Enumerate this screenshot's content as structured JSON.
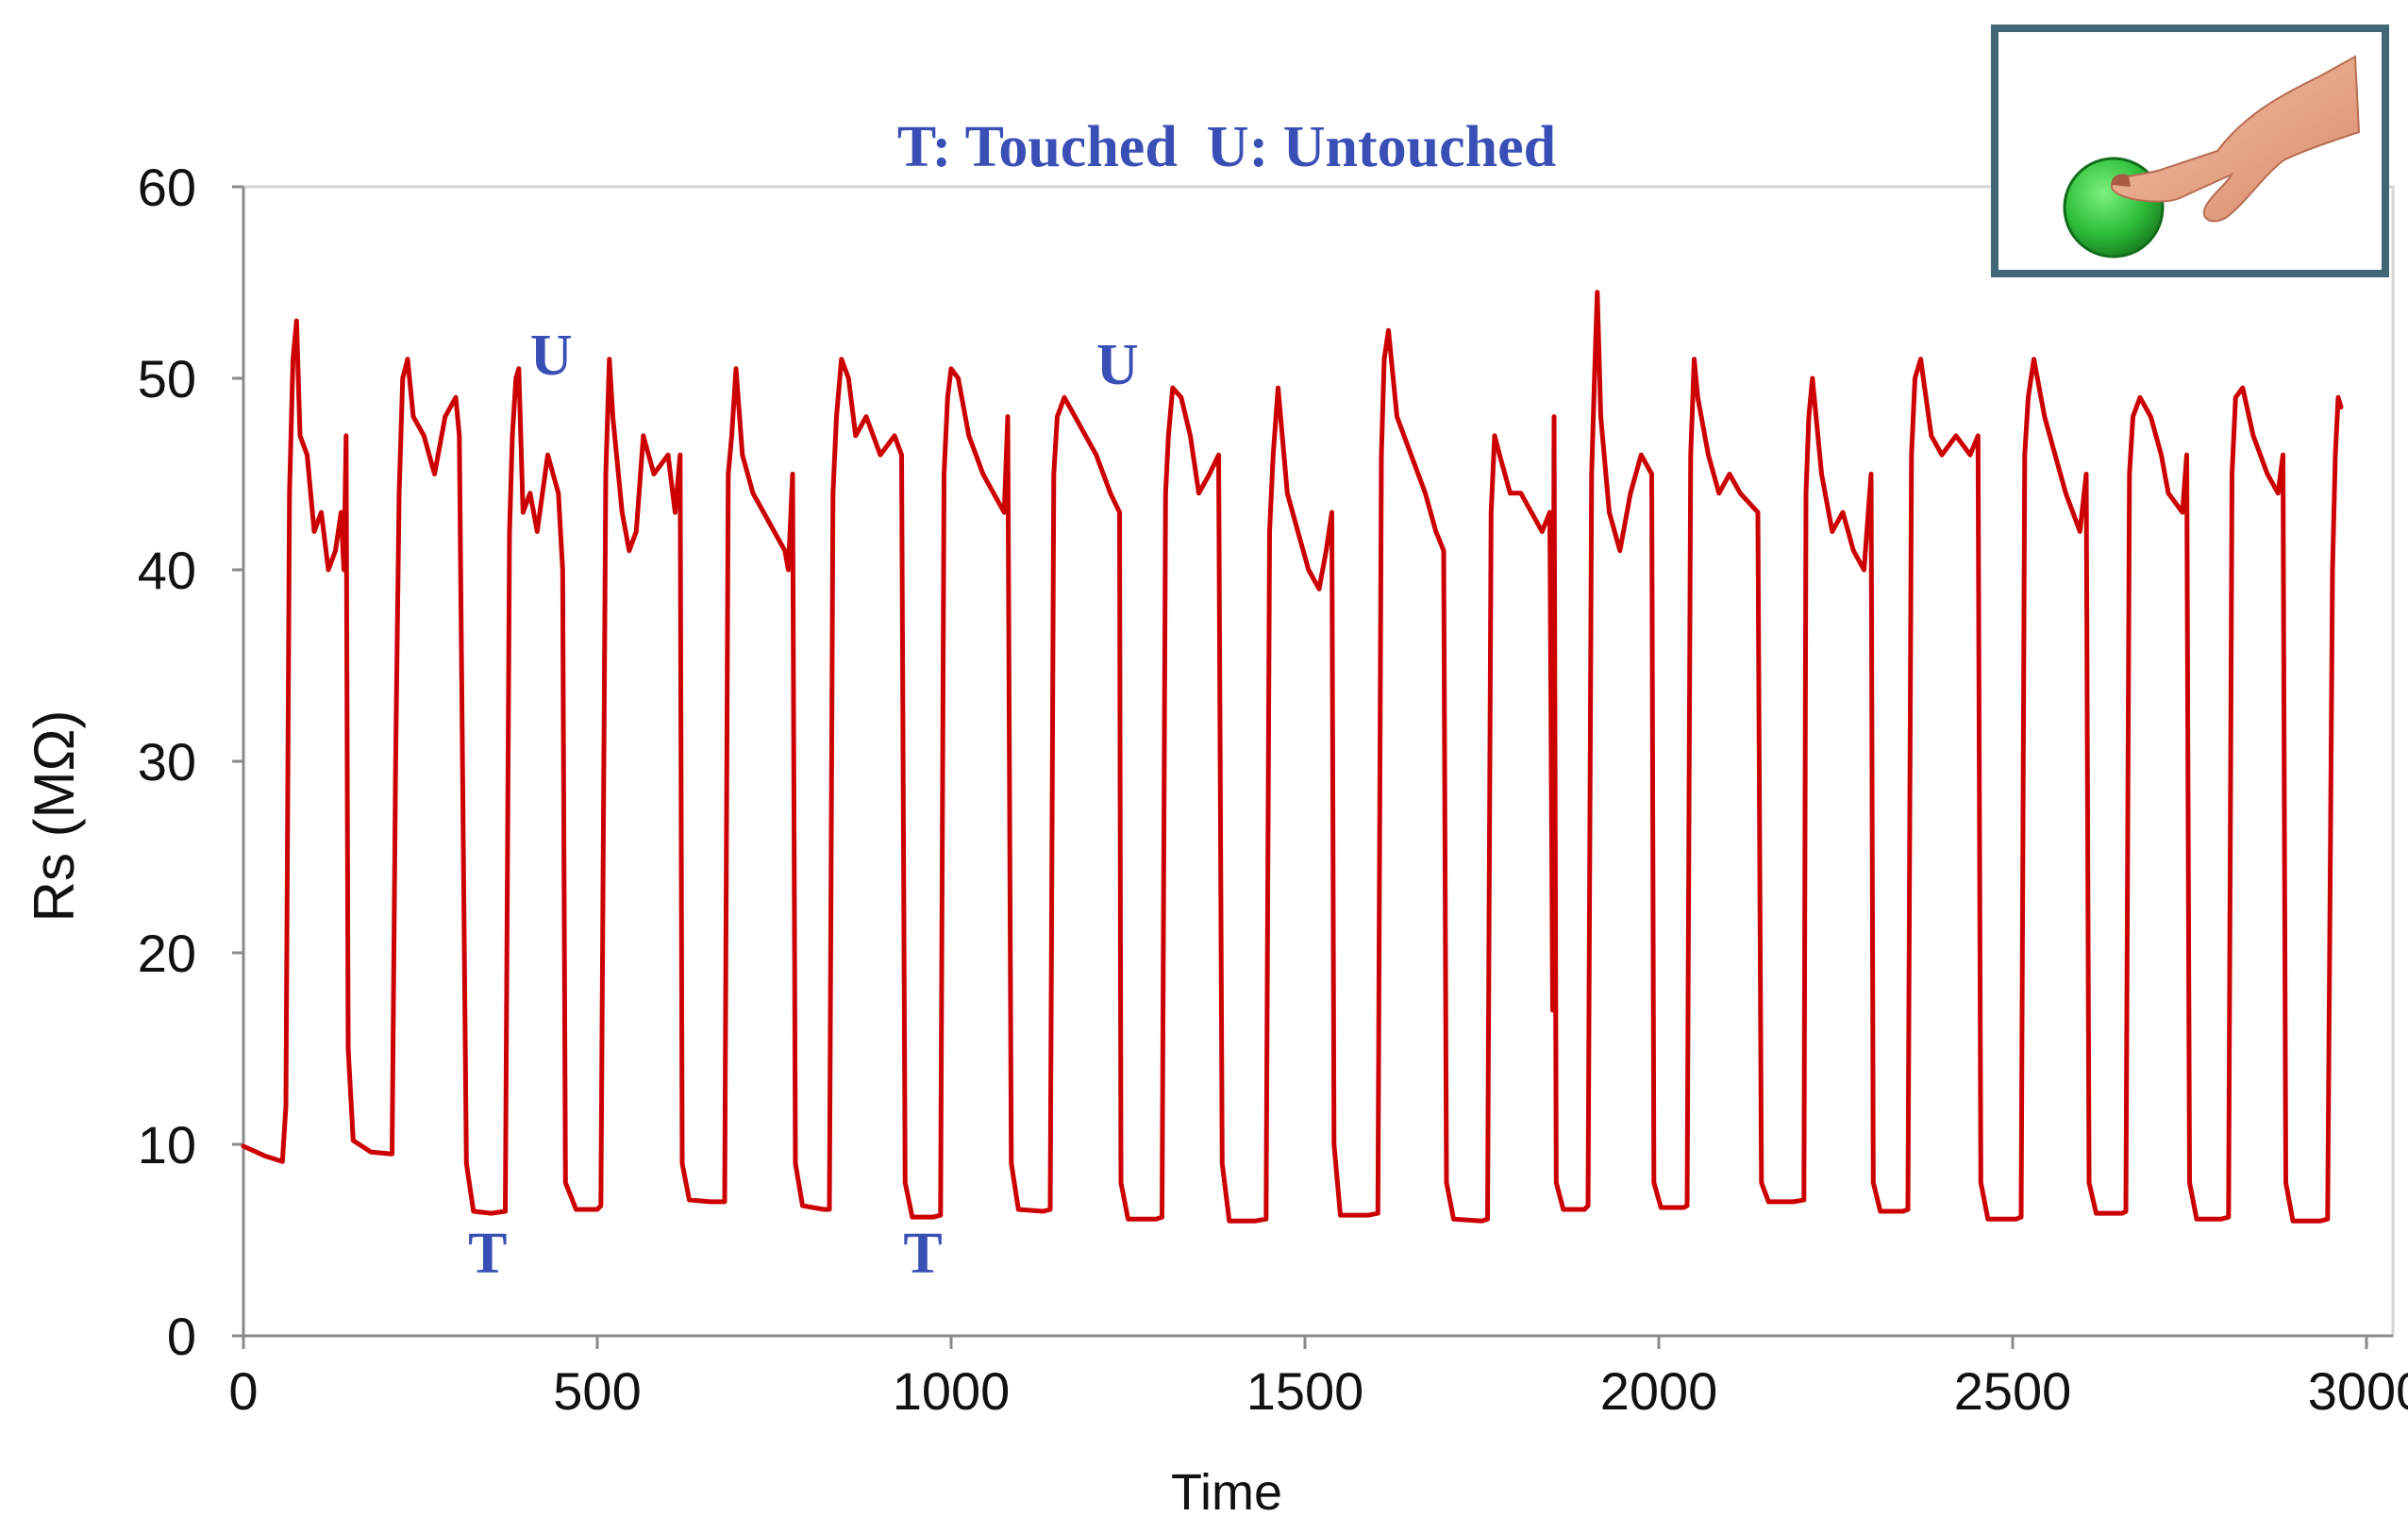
{
  "chart_data": {
    "type": "line",
    "title": "T: Touched  U: Untouched",
    "xlabel": "Time",
    "ylabel": "Rs (MΩ)",
    "xlim": [
      0,
      3000
    ],
    "ylim": [
      0,
      60
    ],
    "x_ticks": [
      0,
      500,
      1000,
      1500,
      2000,
      2500,
      3000
    ],
    "y_ticks": [
      0,
      10,
      20,
      30,
      40,
      50,
      60
    ],
    "grid": false,
    "series_color": "#cc0000",
    "annotation_color": "#3a4fb5",
    "series": [
      {
        "name": "Rs",
        "points": [
          [
            0,
            9.9
          ],
          [
            30,
            9.4
          ],
          [
            55,
            9.1
          ],
          [
            60,
            12
          ],
          [
            65,
            44
          ],
          [
            70,
            51
          ],
          [
            75,
            53
          ],
          [
            80,
            47
          ],
          [
            90,
            46
          ],
          [
            100,
            42
          ],
          [
            110,
            43
          ],
          [
            120,
            40
          ],
          [
            130,
            41
          ],
          [
            138,
            43
          ],
          [
            142,
            40
          ],
          [
            145,
            47
          ],
          [
            148,
            15
          ],
          [
            155,
            10.2
          ],
          [
            180,
            9.6
          ],
          [
            210,
            9.5
          ],
          [
            215,
            30
          ],
          [
            220,
            44
          ],
          [
            225,
            50
          ],
          [
            232,
            51
          ],
          [
            240,
            48
          ],
          [
            255,
            47
          ],
          [
            270,
            45
          ],
          [
            285,
            48
          ],
          [
            300,
            49
          ],
          [
            305,
            47
          ],
          [
            315,
            9
          ],
          [
            325,
            6.5
          ],
          [
            350,
            6.4
          ],
          [
            370,
            6.5
          ],
          [
            376,
            42
          ],
          [
            380,
            47
          ],
          [
            385,
            50
          ],
          [
            389,
            50.5
          ],
          [
            395,
            43
          ],
          [
            405,
            44
          ],
          [
            415,
            42
          ],
          [
            430,
            46
          ],
          [
            445,
            44
          ],
          [
            451,
            40
          ],
          [
            455,
            8
          ],
          [
            470,
            6.6
          ],
          [
            500,
            6.6
          ],
          [
            505,
            6.8
          ],
          [
            512,
            45
          ],
          [
            517,
            51
          ],
          [
            522,
            48
          ],
          [
            535,
            43
          ],
          [
            545,
            41
          ],
          [
            555,
            42
          ],
          [
            565,
            47
          ],
          [
            580,
            45
          ],
          [
            600,
            46
          ],
          [
            610,
            43
          ],
          [
            617,
            46
          ],
          [
            620,
            9
          ],
          [
            630,
            7.1
          ],
          [
            660,
            7.0
          ],
          [
            680,
            7.0
          ],
          [
            685,
            45
          ],
          [
            690,
            47
          ],
          [
            696,
            50.5
          ],
          [
            705,
            46
          ],
          [
            720,
            44
          ],
          [
            735,
            43
          ],
          [
            750,
            42
          ],
          [
            765,
            41
          ],
          [
            770,
            40
          ],
          [
            776,
            45
          ],
          [
            780,
            9
          ],
          [
            790,
            6.8
          ],
          [
            820,
            6.6
          ],
          [
            828,
            6.6
          ],
          [
            833,
            44
          ],
          [
            838,
            48
          ],
          [
            845,
            51
          ],
          [
            855,
            50
          ],
          [
            865,
            47
          ],
          [
            880,
            48
          ],
          [
            900,
            46
          ],
          [
            920,
            47
          ],
          [
            930,
            46
          ],
          [
            935,
            8
          ],
          [
            945,
            6.2
          ],
          [
            975,
            6.2
          ],
          [
            985,
            6.3
          ],
          [
            990,
            45
          ],
          [
            995,
            49
          ],
          [
            1000,
            50.5
          ],
          [
            1010,
            50
          ],
          [
            1025,
            47
          ],
          [
            1045,
            45
          ],
          [
            1060,
            44
          ],
          [
            1075,
            43
          ],
          [
            1080,
            48
          ],
          [
            1085,
            9
          ],
          [
            1095,
            6.6
          ],
          [
            1130,
            6.5
          ],
          [
            1140,
            6.6
          ],
          [
            1145,
            45
          ],
          [
            1150,
            48
          ],
          [
            1160,
            49
          ],
          [
            1175,
            48
          ],
          [
            1190,
            47
          ],
          [
            1205,
            46
          ],
          [
            1225,
            44
          ],
          [
            1238,
            43
          ],
          [
            1240,
            8
          ],
          [
            1250,
            6.1
          ],
          [
            1290,
            6.1
          ],
          [
            1298,
            6.2
          ],
          [
            1303,
            44
          ],
          [
            1307,
            47
          ],
          [
            1313,
            49.5
          ],
          [
            1325,
            49
          ],
          [
            1338,
            47
          ],
          [
            1350,
            44
          ],
          [
            1365,
            45
          ],
          [
            1378,
            46
          ],
          [
            1383,
            9
          ],
          [
            1393,
            6.0
          ],
          [
            1430,
            6.0
          ],
          [
            1445,
            6.1
          ],
          [
            1450,
            42
          ],
          [
            1455,
            46
          ],
          [
            1462,
            49.5
          ],
          [
            1475,
            44
          ],
          [
            1490,
            42
          ],
          [
            1505,
            40
          ],
          [
            1520,
            39
          ],
          [
            1530,
            41
          ],
          [
            1538,
            43
          ],
          [
            1541,
            10
          ],
          [
            1550,
            6.3
          ],
          [
            1590,
            6.3
          ],
          [
            1603,
            6.4
          ],
          [
            1608,
            46
          ],
          [
            1612,
            51
          ],
          [
            1618,
            52.5
          ],
          [
            1630,
            48
          ],
          [
            1650,
            46
          ],
          [
            1670,
            44
          ],
          [
            1685,
            42
          ],
          [
            1696,
            41
          ],
          [
            1700,
            8
          ],
          [
            1710,
            6.1
          ],
          [
            1750,
            6.0
          ],
          [
            1758,
            6.1
          ],
          [
            1763,
            43
          ],
          [
            1768,
            47
          ],
          [
            1775,
            46
          ],
          [
            1790,
            44
          ],
          [
            1805,
            44
          ],
          [
            1820,
            43
          ],
          [
            1835,
            42
          ],
          [
            1846,
            43
          ],
          [
            1850,
            17
          ],
          [
            1852,
            48
          ],
          [
            1855,
            8
          ],
          [
            1865,
            6.6
          ],
          [
            1895,
            6.6
          ],
          [
            1900,
            6.8
          ],
          [
            1905,
            45
          ],
          [
            1909,
            50
          ],
          [
            1913,
            54.5
          ],
          [
            1918,
            48
          ],
          [
            1930,
            43
          ],
          [
            1945,
            41
          ],
          [
            1960,
            44
          ],
          [
            1975,
            46
          ],
          [
            1990,
            45
          ],
          [
            1993,
            8
          ],
          [
            2003,
            6.7
          ],
          [
            2035,
            6.7
          ],
          [
            2040,
            6.8
          ],
          [
            2045,
            46
          ],
          [
            2050,
            51
          ],
          [
            2055,
            49
          ],
          [
            2070,
            46
          ],
          [
            2085,
            44
          ],
          [
            2100,
            45
          ],
          [
            2115,
            44
          ],
          [
            2140,
            43
          ],
          [
            2145,
            8
          ],
          [
            2155,
            7.0
          ],
          [
            2190,
            7.0
          ],
          [
            2205,
            7.1
          ],
          [
            2208,
            44
          ],
          [
            2212,
            48
          ],
          [
            2217,
            50
          ],
          [
            2230,
            45
          ],
          [
            2245,
            42
          ],
          [
            2260,
            43
          ],
          [
            2275,
            41
          ],
          [
            2290,
            40
          ],
          [
            2300,
            45
          ],
          [
            2303,
            8
          ],
          [
            2313,
            6.5
          ],
          [
            2345,
            6.5
          ],
          [
            2352,
            6.6
          ],
          [
            2357,
            46
          ],
          [
            2362,
            50
          ],
          [
            2370,
            51
          ],
          [
            2385,
            47
          ],
          [
            2400,
            46
          ],
          [
            2420,
            47
          ],
          [
            2440,
            46
          ],
          [
            2451,
            47
          ],
          [
            2455,
            8
          ],
          [
            2465,
            6.1
          ],
          [
            2505,
            6.1
          ],
          [
            2512,
            6.2
          ],
          [
            2517,
            46
          ],
          [
            2522,
            49
          ],
          [
            2530,
            51
          ],
          [
            2545,
            48
          ],
          [
            2560,
            46
          ],
          [
            2575,
            44
          ],
          [
            2595,
            42
          ],
          [
            2604,
            45
          ],
          [
            2608,
            8
          ],
          [
            2618,
            6.4
          ],
          [
            2655,
            6.4
          ],
          [
            2660,
            6.5
          ],
          [
            2665,
            45
          ],
          [
            2670,
            48
          ],
          [
            2680,
            49
          ],
          [
            2695,
            48
          ],
          [
            2710,
            46
          ],
          [
            2720,
            44
          ],
          [
            2740,
            43
          ],
          [
            2746,
            46
          ],
          [
            2750,
            8
          ],
          [
            2760,
            6.1
          ],
          [
            2795,
            6.1
          ],
          [
            2805,
            6.2
          ],
          [
            2810,
            45
          ],
          [
            2815,
            49
          ],
          [
            2825,
            49.5
          ],
          [
            2840,
            47
          ],
          [
            2860,
            45
          ],
          [
            2875,
            44
          ],
          [
            2882,
            46
          ],
          [
            2886,
            8
          ],
          [
            2896,
            6.0
          ],
          [
            2935,
            6.0
          ],
          [
            2945,
            6.1
          ],
          [
            2952,
            40
          ],
          [
            2956,
            46
          ],
          [
            2960,
            49
          ],
          [
            2964,
            48.5
          ]
        ]
      }
    ],
    "annotations": [
      {
        "text": "U",
        "x": 435,
        "y": 50.2
      },
      {
        "text": "U",
        "x": 1235,
        "y": 49.7
      },
      {
        "text": "T",
        "x": 345,
        "y": 3.3
      },
      {
        "text": "T",
        "x": 960,
        "y": 3.3
      }
    ]
  },
  "inset": {
    "icon": "finger-touching-sensor-icon",
    "frame_color": "#3f6778",
    "sensor_color": "#2fbf3a",
    "hand_color": "#e8a68a"
  }
}
